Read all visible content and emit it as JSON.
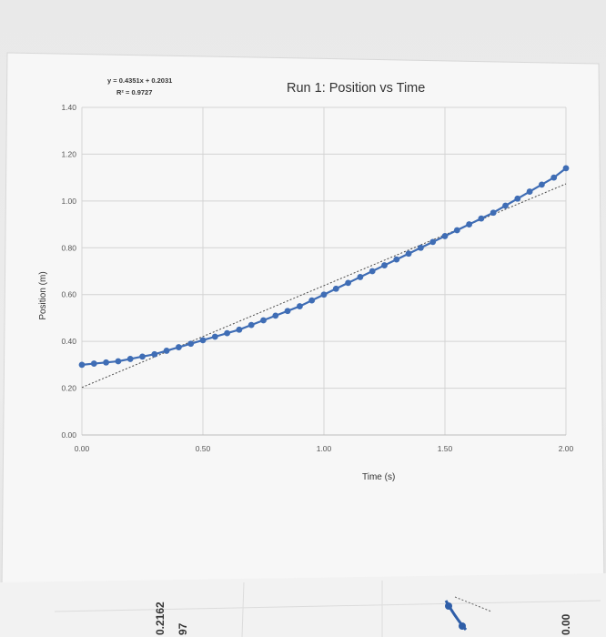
{
  "chart_data": {
    "type": "scatter",
    "title": "Run 1: Position vs Time",
    "xlabel": "Time (s)",
    "ylabel": "Position (m)",
    "xlim": [
      0,
      2.0
    ],
    "ylim": [
      0,
      1.4
    ],
    "x_ticks": [
      "0.00",
      "0.50",
      "1.00",
      "1.50",
      "2.00"
    ],
    "y_ticks": [
      "0.00",
      "0.20",
      "0.40",
      "0.60",
      "0.80",
      "1.00",
      "1.20",
      "1.40"
    ],
    "grid": true,
    "legend": "none",
    "trendline": {
      "equation": "y = 0.4351x + 0.2031",
      "r_squared": "R² = 0.9727",
      "slope": 0.4351,
      "intercept": 0.2031
    },
    "series": [
      {
        "color": "#3f6db5",
        "x": [
          0.0,
          0.05,
          0.1,
          0.15,
          0.2,
          0.25,
          0.3,
          0.35,
          0.4,
          0.45,
          0.5,
          0.55,
          0.6,
          0.65,
          0.7,
          0.75,
          0.8,
          0.85,
          0.9,
          0.95,
          1.0,
          1.05,
          1.1,
          1.15,
          1.2,
          1.25,
          1.3,
          1.35,
          1.4,
          1.45,
          1.5,
          1.55,
          1.6,
          1.65,
          1.7,
          1.75,
          1.8,
          1.85,
          1.9,
          1.95,
          2.0
        ],
        "y": [
          0.3,
          0.305,
          0.31,
          0.315,
          0.325,
          0.335,
          0.345,
          0.36,
          0.375,
          0.39,
          0.405,
          0.42,
          0.435,
          0.45,
          0.47,
          0.49,
          0.51,
          0.53,
          0.55,
          0.575,
          0.6,
          0.625,
          0.65,
          0.675,
          0.7,
          0.725,
          0.75,
          0.775,
          0.8,
          0.825,
          0.85,
          0.875,
          0.9,
          0.925,
          0.95,
          0.98,
          1.01,
          1.04,
          1.07,
          1.1,
          1.14
        ]
      }
    ]
  },
  "fragments": {
    "left_value": "0.2162",
    "left_value_partial": "97",
    "right_value": "0.00"
  }
}
